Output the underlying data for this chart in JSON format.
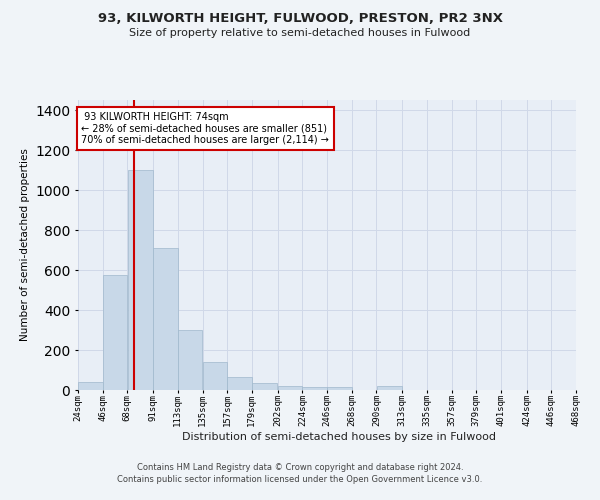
{
  "title1": "93, KILWORTH HEIGHT, FULWOOD, PRESTON, PR2 3NX",
  "title2": "Size of property relative to semi-detached houses in Fulwood",
  "xlabel": "Distribution of semi-detached houses by size in Fulwood",
  "ylabel": "Number of semi-detached properties",
  "footer1": "Contains HM Land Registry data © Crown copyright and database right 2024.",
  "footer2": "Contains public sector information licensed under the Open Government Licence v3.0.",
  "property_label": "93 KILWORTH HEIGHT: 74sqm",
  "smaller_pct": 28,
  "smaller_n": 851,
  "larger_pct": 70,
  "larger_n": 2114,
  "bar_left_edges": [
    24,
    46,
    68,
    91,
    113,
    135,
    157,
    179,
    202,
    224,
    246,
    268,
    290,
    313,
    335,
    357,
    379,
    401,
    424,
    446
  ],
  "bar_widths": [
    22,
    22,
    23,
    22,
    22,
    22,
    22,
    23,
    22,
    22,
    22,
    22,
    23,
    22,
    22,
    22,
    22,
    23,
    22,
    22
  ],
  "bar_heights": [
    38,
    575,
    1100,
    710,
    300,
    140,
    65,
    35,
    20,
    15,
    15,
    0,
    20,
    0,
    0,
    0,
    0,
    0,
    0,
    0
  ],
  "bar_color": "#c8d8e8",
  "bar_edgecolor": "#a0b8cc",
  "vline_x": 74,
  "vline_color": "#cc0000",
  "ylim": [
    0,
    1450
  ],
  "yticks": [
    0,
    200,
    400,
    600,
    800,
    1000,
    1200,
    1400
  ],
  "xlim": [
    24,
    468
  ],
  "tick_labels": [
    "24sqm",
    "46sqm",
    "68sqm",
    "91sqm",
    "113sqm",
    "135sqm",
    "157sqm",
    "179sqm",
    "202sqm",
    "224sqm",
    "246sqm",
    "268sqm",
    "290sqm",
    "313sqm",
    "335sqm",
    "357sqm",
    "379sqm",
    "401sqm",
    "424sqm",
    "446sqm",
    "468sqm"
  ],
  "annotation_box_color": "#cc0000",
  "grid_color": "#d0d8e8",
  "bg_color": "#e8eef6",
  "fig_bg_color": "#f0f4f8"
}
